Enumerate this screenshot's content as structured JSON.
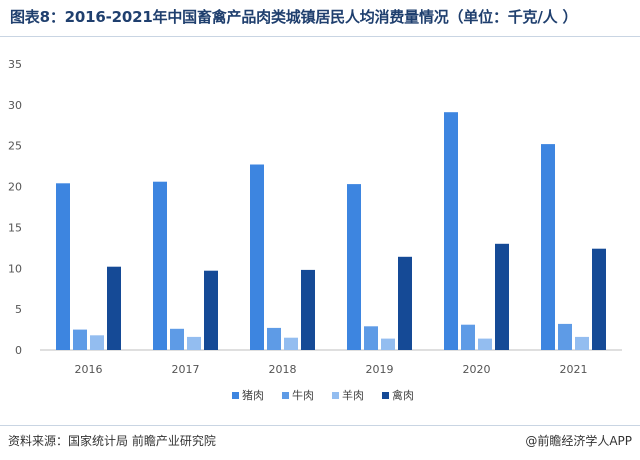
{
  "title": "图表8：2016-2021年中国畜禽产品肉类城镇居民人均消费量情况（单位：千克/人 ）",
  "footer": {
    "source": "资料来源：国家统计局 前瞻产业研究院",
    "credit": "@前瞻经济学人APP"
  },
  "colors": {
    "pork": "#3d85e0",
    "beef": "#5e9be6",
    "mutton": "#93bdf0",
    "poultry": "#154a96",
    "title": "#1f3f6e"
  },
  "chart_data": {
    "type": "bar",
    "categories": [
      "2016",
      "2017",
      "2018",
      "2019",
      "2020",
      "2021"
    ],
    "series": [
      {
        "name": "猪肉",
        "values": [
          20.4,
          20.6,
          22.7,
          20.3,
          29.1,
          25.2
        ]
      },
      {
        "name": "牛肉",
        "values": [
          2.5,
          2.6,
          2.7,
          2.9,
          3.1,
          3.2
        ]
      },
      {
        "name": "羊肉",
        "values": [
          1.8,
          1.6,
          1.5,
          1.4,
          1.4,
          1.6
        ]
      },
      {
        "name": "禽肉",
        "values": [
          10.2,
          9.7,
          9.8,
          11.4,
          13.0,
          12.4
        ]
      }
    ],
    "yticks": [
      "0",
      "5",
      "10",
      "15",
      "20",
      "25",
      "30",
      "35"
    ],
    "ylim": [
      0,
      35
    ],
    "grid": false,
    "legend": "bottom"
  }
}
